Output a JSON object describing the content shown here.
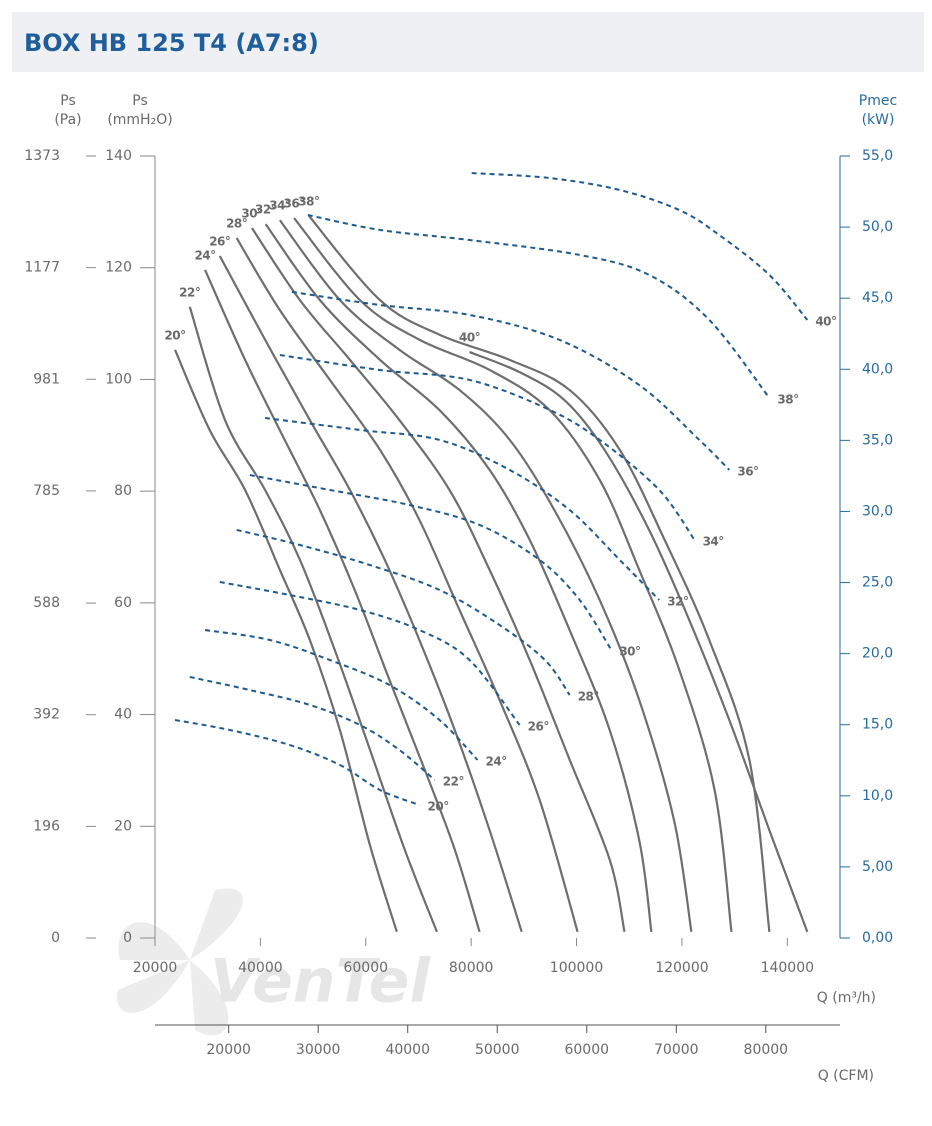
{
  "chart_data": {
    "type": "line",
    "title": "BOX HB 125 T4 (A7:8)",
    "watermark": "VenTel",
    "x_label": "Q (m³/h)",
    "y_label": [
      "Ps",
      "(mmH₂O)"
    ],
    "y2_label": [
      "Pmec",
      "(kW)"
    ],
    "xlim": [
      20000,
      150000
    ],
    "xticks": [
      20000,
      40000,
      60000,
      80000,
      100000,
      120000,
      140000
    ],
    "ylim": [
      0,
      140
    ],
    "yticks": [
      0,
      20,
      40,
      60,
      80,
      100,
      120,
      140
    ],
    "y2lim": [
      0,
      55
    ],
    "y2ticks": [
      {
        "value": 0,
        "label": "0,00"
      },
      {
        "value": 5,
        "label": "5,00"
      },
      {
        "value": 10,
        "label": "10,0"
      },
      {
        "value": 15,
        "label": "15,0"
      },
      {
        "value": 20,
        "label": "20,0"
      },
      {
        "value": 25,
        "label": "25,0"
      },
      {
        "value": 30,
        "label": "30,0"
      },
      {
        "value": 35,
        "label": "35,0"
      },
      {
        "value": 40,
        "label": "40,0"
      },
      {
        "value": 45,
        "label": "45,0"
      },
      {
        "value": 50,
        "label": "50,0"
      },
      {
        "value": 55,
        "label": "55,0"
      }
    ],
    "pa_axis": {
      "title": [
        "Ps",
        "(Pa)"
      ],
      "lim": [
        0,
        1373
      ],
      "ticks": [
        0,
        196,
        392,
        588,
        785,
        981,
        1177,
        1373
      ]
    },
    "x2_axis": {
      "title": "Q (CFM)",
      "lim": [
        11772,
        88287
      ],
      "ticks": [
        20000,
        30000,
        40000,
        50000,
        60000,
        70000,
        80000
      ]
    },
    "grid": true,
    "series": [
      {
        "name": "20°",
        "color": "#6e6e6e",
        "x": [
          23800,
          30400,
          37100,
          43700,
          49400,
          55100,
          60800,
          65900
        ],
        "values": [
          105.3,
          90.9,
          80.2,
          65.9,
          53.3,
          37.2,
          16.6,
          1.1
        ]
      },
      {
        "name": "22°",
        "color": "#6e6e6e",
        "x": [
          26600,
          33300,
          40900,
          47500,
          54100,
          60800,
          67400,
          73500
        ],
        "values": [
          113.0,
          92.7,
          80.2,
          67.7,
          51.6,
          33.7,
          15.8,
          1.1
        ]
      },
      {
        "name": "24°",
        "color": "#6e6e6e",
        "x": [
          29500,
          37100,
          44600,
          51300,
          57900,
          64500,
          71200,
          76900,
          81600
        ],
        "values": [
          119.6,
          103.5,
          89.2,
          76.6,
          62.3,
          46.2,
          30.1,
          15.8,
          1.1
        ]
      },
      {
        "name": "26°",
        "color": "#6e6e6e",
        "x": [
          32300,
          40900,
          49400,
          57000,
          63600,
          70200,
          76900,
          83500,
          89600
        ],
        "values": [
          122.1,
          107.1,
          92.7,
          80.2,
          67.7,
          53.3,
          37.2,
          19.3,
          1.1
        ]
      },
      {
        "name": "28°",
        "color": "#6e6e6e",
        "x": [
          35500,
          43700,
          53200,
          62700,
          70200,
          77800,
          85400,
          93000,
          100200
        ],
        "values": [
          125.3,
          112.4,
          99.9,
          87.4,
          74.8,
          58.7,
          42.6,
          24.7,
          1.1
        ]
      },
      {
        "name": "30°",
        "color": "#6e6e6e",
        "x": [
          38400,
          47500,
          57000,
          66400,
          75900,
          83500,
          91100,
          98700,
          106300,
          109100
        ],
        "values": [
          127.1,
          114.2,
          103.5,
          92.7,
          80.2,
          65.9,
          49.8,
          31.9,
          14.0,
          1.1
        ]
      },
      {
        "name": "32°",
        "color": "#6e6e6e",
        "x": [
          41000,
          51300,
          62700,
          74000,
          83500,
          91100,
          98700,
          106300,
          111900,
          114200
        ],
        "values": [
          127.8,
          114.2,
          103.5,
          94.5,
          83.8,
          71.3,
          55.1,
          37.2,
          17.5,
          1.1
        ]
      },
      {
        "name": "34°",
        "color": "#6e6e6e",
        "x": [
          43700,
          55100,
          66400,
          77800,
          87300,
          95800,
          104400,
          111900,
          118500,
          121800
        ],
        "values": [
          128.5,
          114.2,
          105.3,
          98.1,
          89.2,
          76.6,
          60.5,
          42.6,
          21.1,
          1.1
        ]
      },
      {
        "name": "36°",
        "color": "#6e6e6e",
        "x": [
          46400,
          58900,
          70200,
          83500,
          94900,
          104400,
          111900,
          119500,
          126200,
          129400
        ],
        "values": [
          128.9,
          114.2,
          107.1,
          101.7,
          94.5,
          82.0,
          65.9,
          48.0,
          26.5,
          1.1
        ]
      },
      {
        "name": "38°",
        "color": "#6e6e6e",
        "x": [
          49200,
          62700,
          74000,
          87300,
          98700,
          108200,
          116700,
          125200,
          132800,
          136600
        ],
        "values": [
          129.3,
          114.2,
          108.0,
          103.5,
          98.1,
          87.4,
          71.3,
          53.3,
          31.9,
          1.1
        ]
      },
      {
        "name": "40°",
        "color": "#6e6e6e",
        "x": [
          79700,
          89200,
          97700,
          105300,
          113800,
          121400,
          129000,
          136600,
          143800
        ],
        "values": [
          104.9,
          101.3,
          96.3,
          87.4,
          73.0,
          56.9,
          39.0,
          19.3,
          1.1
        ]
      },
      {
        "name": "20°",
        "color": "#1d5a8e",
        "axis": "y2",
        "dashed": true,
        "x": [
          23800,
          34200,
          45600,
          55100,
          62700,
          70200
        ],
        "values": [
          15.33,
          14.63,
          13.57,
          12.17,
          10.41,
          9.35
        ]
      },
      {
        "name": "22°",
        "color": "#1d5a8e",
        "axis": "y2",
        "dashed": true,
        "x": [
          26600,
          38000,
          49400,
          58900,
          66400,
          73100
        ],
        "values": [
          18.36,
          17.44,
          16.39,
          14.98,
          13.22,
          11.11
        ]
      },
      {
        "name": "24°",
        "color": "#1d5a8e",
        "axis": "y2",
        "dashed": true,
        "x": [
          29500,
          41800,
          53200,
          64500,
          74000,
          81200
        ],
        "values": [
          21.66,
          20.96,
          19.55,
          17.79,
          15.33,
          12.52
        ]
      },
      {
        "name": "26°",
        "color": "#1d5a8e",
        "axis": "y2",
        "dashed": true,
        "x": [
          32300,
          45600,
          58900,
          70200,
          79700,
          89200
        ],
        "values": [
          25.04,
          24.12,
          23.07,
          21.66,
          19.55,
          14.98
        ]
      },
      {
        "name": "28°",
        "color": "#1d5a8e",
        "axis": "y2",
        "dashed": true,
        "x": [
          35500,
          47500,
          60800,
          74000,
          85400,
          94000,
          98700
        ],
        "values": [
          28.7,
          27.64,
          26.23,
          24.48,
          22.01,
          19.55,
          17.09
        ]
      },
      {
        "name": "30°",
        "color": "#1d5a8e",
        "axis": "y2",
        "dashed": true,
        "x": [
          38000,
          53200,
          68300,
          81600,
          93000,
          100600,
          106600
        ],
        "values": [
          32.56,
          31.51,
          30.45,
          29.05,
          26.59,
          23.77,
          20.26
        ]
      },
      {
        "name": "32°",
        "color": "#1d5a8e",
        "axis": "y2",
        "dashed": true,
        "x": [
          40900,
          58900,
          74000,
          87300,
          98700,
          108200,
          115700
        ],
        "values": [
          36.57,
          35.73,
          35.03,
          32.92,
          30.1,
          26.59,
          23.77
        ]
      },
      {
        "name": "34°",
        "color": "#1d5a8e",
        "axis": "y2",
        "dashed": true,
        "x": [
          43700,
          62700,
          79700,
          94900,
          104400,
          115700,
          122400
        ],
        "values": [
          41.0,
          39.95,
          39.25,
          37.14,
          35.03,
          31.51,
          27.99
        ]
      },
      {
        "name": "36°",
        "color": "#1d5a8e",
        "axis": "y2",
        "dashed": true,
        "x": [
          46000,
          62700,
          79700,
          96800,
          111900,
          123300,
          129000
        ],
        "values": [
          45.44,
          44.52,
          43.82,
          42.06,
          38.89,
          35.03,
          32.92
        ]
      },
      {
        "name": "38°",
        "color": "#1d5a8e",
        "axis": "y2",
        "dashed": true,
        "x": [
          49000,
          62700,
          79700,
          100600,
          113800,
          125200,
          136600
        ],
        "values": [
          50.85,
          49.8,
          49.09,
          48.04,
          46.63,
          43.47,
          37.98
        ]
      },
      {
        "name": "40°",
        "color": "#1d5a8e",
        "axis": "y2",
        "dashed": true,
        "x": [
          80100,
          94900,
          108200,
          119500,
          127100,
          136600,
          143800
        ],
        "values": [
          53.8,
          53.45,
          52.61,
          51.2,
          49.44,
          46.63,
          43.47
        ]
      }
    ]
  }
}
